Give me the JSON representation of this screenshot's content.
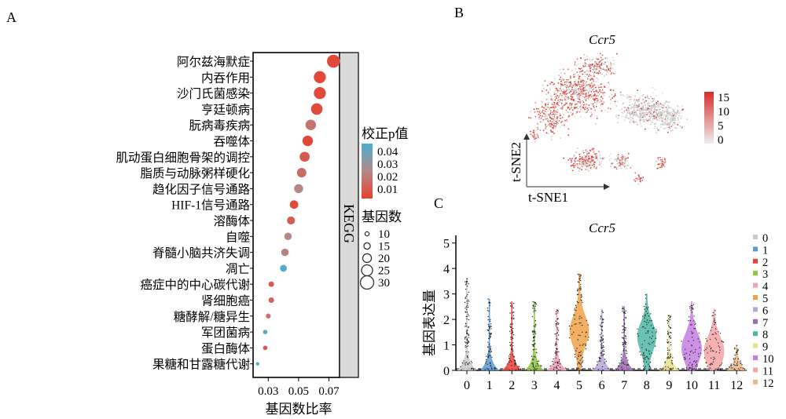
{
  "panel_labels": {
    "a": "A",
    "b": "B",
    "c": "C"
  },
  "chart_data": [
    {
      "type": "scatter",
      "subtype": "dotplot",
      "panel": "A",
      "categories": [
        "阿尔兹海默症",
        "内吞作用",
        "沙门氏菌感染",
        "亨廷顿病",
        "朊病毒疾病",
        "吞噬体",
        "肌动蛋白细胞骨架的调控",
        "脂质与动脉粥样硬化",
        "趋化因子信号通路",
        "HIF-1信号通路",
        "溶酶体",
        "自噬",
        "脊髓小脑共济失调",
        "凋亡",
        "癌症中的中心碳代谢",
        "肾细胞癌",
        "糖酵解/糖异生",
        "军团菌病",
        "蛋白酶体",
        "果糖和甘露糖代谢"
      ],
      "gene_ratio": [
        0.073,
        0.064,
        0.064,
        0.062,
        0.058,
        0.056,
        0.054,
        0.052,
        0.05,
        0.047,
        0.045,
        0.043,
        0.041,
        0.04,
        0.032,
        0.032,
        0.03,
        0.028,
        0.028,
        0.023
      ],
      "p_adj": [
        0.008,
        0.007,
        0.008,
        0.008,
        0.02,
        0.007,
        0.012,
        0.018,
        0.026,
        0.008,
        0.014,
        0.025,
        0.024,
        0.045,
        0.012,
        0.015,
        0.02,
        0.045,
        0.012,
        0.045
      ],
      "gene_count": [
        27,
        25,
        25,
        24,
        22,
        22,
        21,
        20,
        19,
        18,
        17,
        16,
        16,
        15,
        12,
        12,
        11,
        10,
        10,
        8
      ],
      "xlabel": "基因数比率",
      "x_ticks": [
        "0.03",
        "0.05",
        "0.07"
      ],
      "xlim": [
        0.02,
        0.077
      ],
      "facet_label": "KEGG",
      "legend_color_title": "校正p值",
      "legend_color_ticks": [
        "0.04",
        "0.03",
        "0.02",
        "0.01"
      ],
      "legend_color_range": [
        0.005,
        0.048
      ],
      "legend_color_low": "#e8402e",
      "legend_color_high": "#4aaecf",
      "legend_size_title": "基因数",
      "legend_size_ticks": [
        "10",
        "15",
        "20",
        "25",
        "30"
      ]
    },
    {
      "type": "scatter",
      "subtype": "tsne",
      "panel": "B",
      "title": "Ccr5",
      "xlabel": "t-SNE1",
      "ylabel": "t-SNE2",
      "colorbar_ticks": [
        "15",
        "10",
        "5",
        "0"
      ],
      "colorbar_range": [
        0,
        15
      ],
      "color_low": "#d9d9d9",
      "color_high": "#d62f2a"
    },
    {
      "type": "violin",
      "panel": "C",
      "title": "Ccr5",
      "ylabel": "基因表达量",
      "categories": [
        "0",
        "1",
        "2",
        "3",
        "4",
        "5",
        "6",
        "7",
        "8",
        "9",
        "10",
        "11",
        "12"
      ],
      "max_values": [
        3.6,
        2.8,
        2.7,
        2.7,
        2.4,
        3.8,
        2.4,
        2.5,
        3.0,
        2.2,
        2.7,
        2.4,
        1.0
      ],
      "peak_values": [
        0.3,
        0.15,
        0.1,
        0.15,
        0.1,
        1.6,
        0.2,
        0.2,
        1.4,
        0.3,
        0.9,
        0.8,
        0.2
      ],
      "colors": [
        "#c9c9c9",
        "#5a9bd5",
        "#e8433b",
        "#8dc63f",
        "#f4a0b8",
        "#f0a24a",
        "#b9a7d9",
        "#9b6bb0",
        "#4fb8a5",
        "#e6e08a",
        "#c77ee0",
        "#f4a5a5",
        "#e8b98c"
      ],
      "y_ticks": [
        "0",
        "1",
        "2",
        "3",
        "4",
        "5"
      ],
      "ylim": [
        0,
        5.3
      ],
      "legend": [
        "0",
        "1",
        "2",
        "3",
        "4",
        "5",
        "6",
        "7",
        "8",
        "9",
        "10",
        "11",
        "12"
      ]
    }
  ]
}
